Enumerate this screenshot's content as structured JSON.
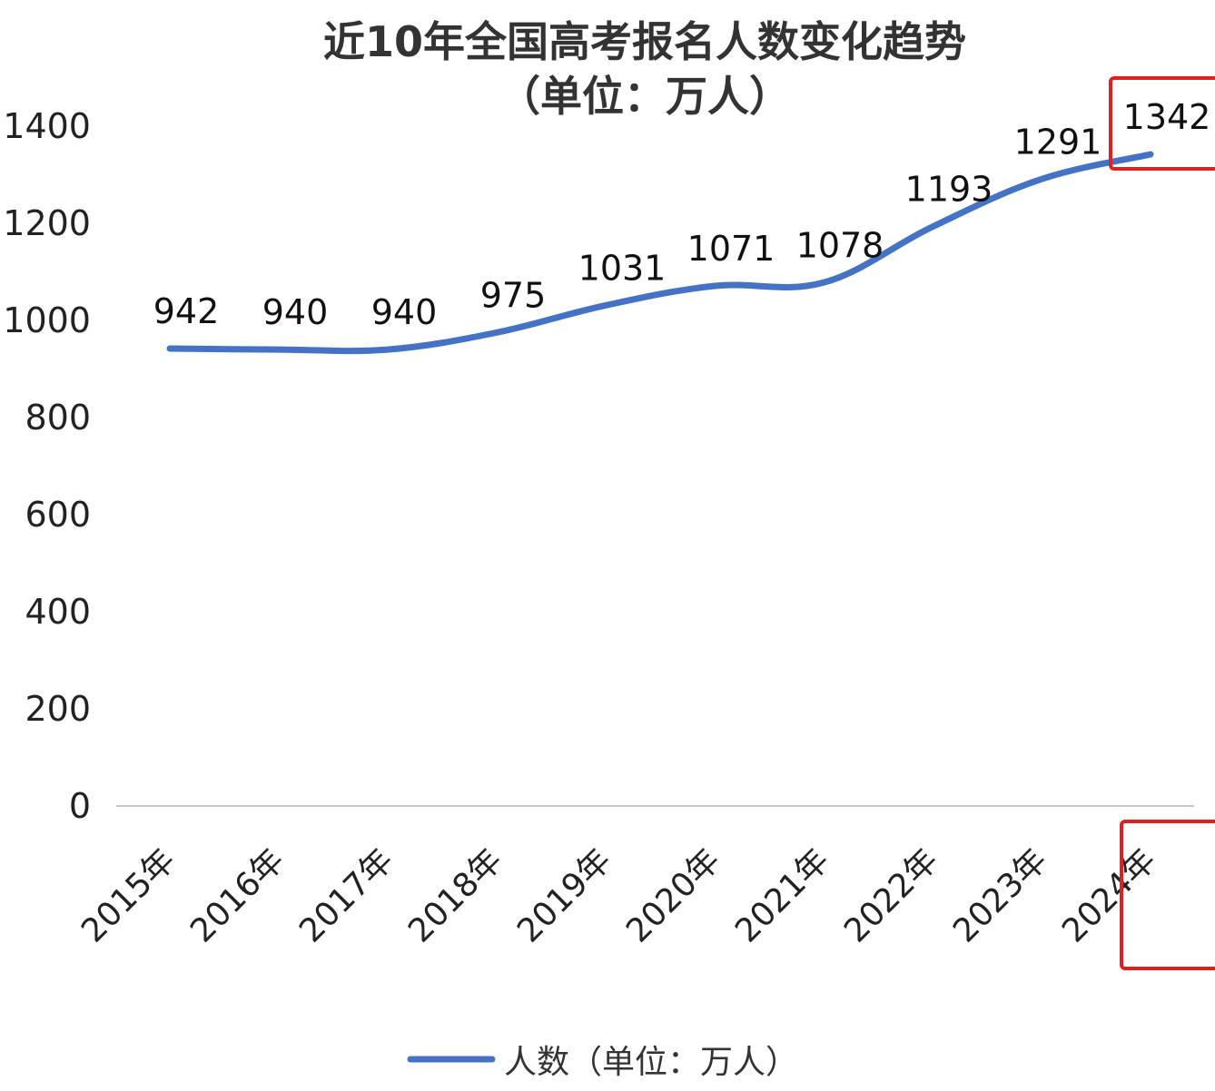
{
  "chart_data": {
    "type": "line",
    "title": "近10年全国高考报名人数变化趋势",
    "subtitle": "（单位：万人）",
    "categories": [
      "2015年",
      "2016年",
      "2017年",
      "2018年",
      "2019年",
      "2020年",
      "2021年",
      "2022年",
      "2023年",
      "2024年"
    ],
    "series": [
      {
        "name": "人数（单位：万人）",
        "values": [
          942,
          940,
          940,
          975,
          1031,
          1071,
          1078,
          1193,
          1291,
          1342
        ]
      }
    ],
    "yticks": [
      "0",
      "200",
      "400",
      "600",
      "800",
      "1000",
      "1200",
      "1400"
    ],
    "ylim": [
      0,
      1400
    ],
    "grid": false,
    "legend": "bottom-center",
    "highlighted_category": "2024年",
    "colors": {
      "line": "#4472c4",
      "highlight": "#e02020",
      "axis": "#c8c8c8"
    }
  }
}
